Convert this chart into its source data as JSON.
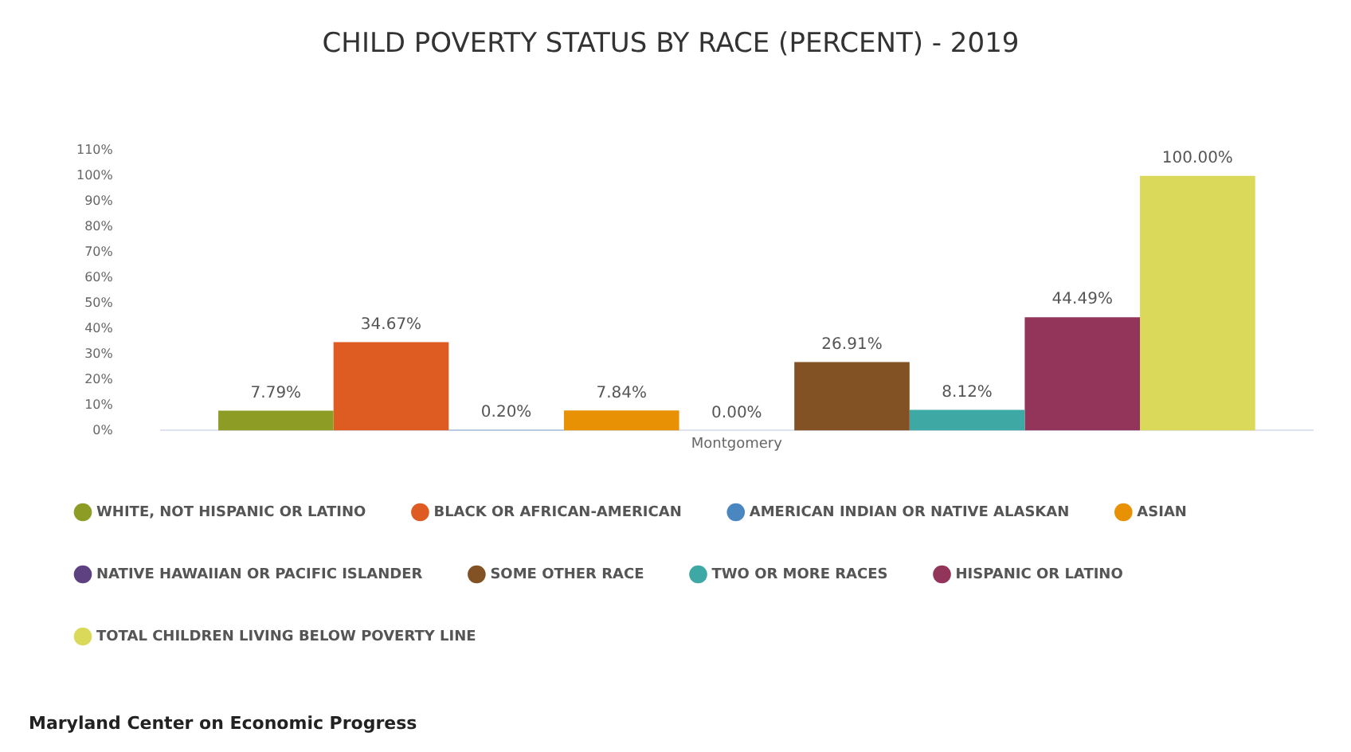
{
  "chart_data": {
    "type": "bar",
    "title": "CHILD POVERTY STATUS BY RACE (PERCENT) - 2019",
    "categories": [
      "Montgomery"
    ],
    "series": [
      {
        "name": "WHITE, NOT HISPANIC OR LATINO",
        "color": "#8c9c24",
        "values": [
          7.79
        ],
        "value_labels": [
          "7.79%"
        ]
      },
      {
        "name": "BLACK OR AFRICAN-AMERICAN",
        "color": "#de5b22",
        "values": [
          34.67
        ],
        "value_labels": [
          "34.67%"
        ]
      },
      {
        "name": "AMERICAN INDIAN OR NATIVE ALASKAN",
        "color": "#4a86c0",
        "values": [
          0.2
        ],
        "value_labels": [
          "0.20%"
        ]
      },
      {
        "name": "ASIAN",
        "color": "#e89104",
        "values": [
          7.84
        ],
        "value_labels": [
          "7.84%"
        ]
      },
      {
        "name": "NATIVE HAWAIIAN OR PACIFIC ISLANDER",
        "color": "#5e4181",
        "values": [
          0
        ],
        "value_labels": [
          "0.00%"
        ]
      },
      {
        "name": "SOME OTHER RACE",
        "color": "#825224",
        "values": [
          26.91
        ],
        "value_labels": [
          "26.91%"
        ]
      },
      {
        "name": "TWO OR MORE RACES",
        "color": "#3ea8a4",
        "values": [
          8.12
        ],
        "value_labels": [
          "8.12%"
        ]
      },
      {
        "name": "HISPANIC OR LATINO",
        "color": "#93355a",
        "values": [
          44.49
        ],
        "value_labels": [
          "44.49%"
        ]
      },
      {
        "name": "TOTAL CHILDREN LIVING BELOW POVERTY LINE",
        "color": "#dad95a",
        "values": [
          100
        ],
        "value_labels": [
          "100.00%"
        ]
      }
    ],
    "ylim": [
      0,
      110
    ],
    "yticks": [
      {
        "value": 0,
        "label": "0%"
      },
      {
        "value": 10,
        "label": "10%"
      },
      {
        "value": 20,
        "label": "20%"
      },
      {
        "value": 30,
        "label": "30%"
      },
      {
        "value": 40,
        "label": "40%"
      },
      {
        "value": 50,
        "label": "50%"
      },
      {
        "value": 60,
        "label": "60%"
      },
      {
        "value": 70,
        "label": "70%"
      },
      {
        "value": 80,
        "label": "80%"
      },
      {
        "value": 90,
        "label": "90%"
      },
      {
        "value": 100,
        "label": "100%"
      },
      {
        "value": 110,
        "label": "110%"
      }
    ],
    "grid": false,
    "legend": "bottom",
    "annotations": [
      "Maryland Center on Economic Progress"
    ]
  }
}
